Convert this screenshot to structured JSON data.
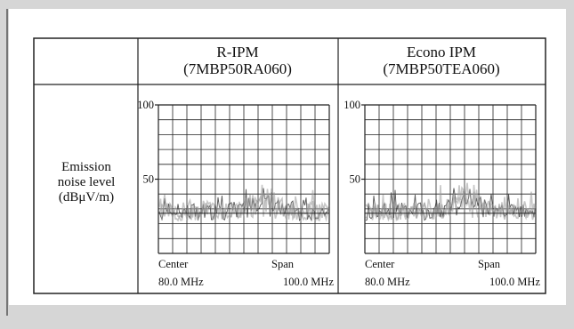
{
  "table": {
    "columns": [
      {
        "name": "R-IPM",
        "part": "(7MBP50RA060)"
      },
      {
        "name": "Econo IPM",
        "part": "(7MBP50TEA060)"
      }
    ],
    "row_label": [
      "Emission",
      "noise level",
      "(dBμV/m)"
    ],
    "charts": [
      {
        "ylim": [
          0,
          100
        ],
        "yticks": [
          50,
          100
        ],
        "center": "Center",
        "center_value": "80.0 MHz",
        "span": "Span",
        "span_value": "100.0 MHz"
      },
      {
        "ylim": [
          0,
          100
        ],
        "yticks": [
          50,
          100
        ],
        "center": "Center",
        "center_value": "80.0 MHz",
        "span": "Span",
        "span_value": "100.0 MHz"
      }
    ]
  }
}
